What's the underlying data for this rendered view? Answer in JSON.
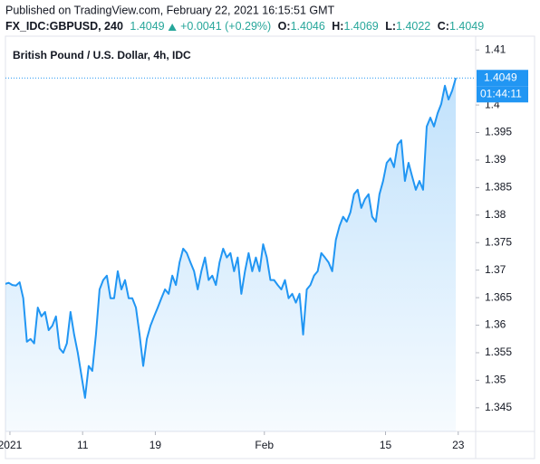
{
  "header": {
    "published": "Published on TradingView.com, February 22, 2021 16:15:51 GMT",
    "symbol": "FX_IDC:GBPUSD, 240",
    "price": "1.4049",
    "change": "+0.0041 (+0.29%)",
    "open_label": "O:",
    "open": "1.4046",
    "high_label": "H:",
    "high": "1.4069",
    "low_label": "L:",
    "low": "1.4022",
    "close_label": "C:",
    "close": "1.4049"
  },
  "chart_data": {
    "type": "area",
    "title": "British Pound / U.S. Dollar, 4h, IDC",
    "color": "#2196f3",
    "x": [
      -0.4,
      -0.1,
      0.2,
      0.5,
      0.8,
      1.1,
      1.4,
      1.7,
      2.0,
      2.3,
      2.6,
      2.9,
      3.2,
      3.5,
      3.8,
      4.1,
      4.4,
      4.7,
      5.0,
      5.3,
      5.6,
      5.9,
      6.2,
      6.5,
      6.8,
      7.1,
      7.4,
      7.7,
      8.0,
      8.3,
      8.6,
      8.9,
      9.2,
      9.5,
      9.8,
      10.1,
      10.4,
      10.7,
      11.0,
      11.3,
      11.6,
      11.9,
      12.2,
      12.5,
      12.8,
      13.1,
      13.4,
      13.7,
      14.0,
      14.3,
      14.6,
      14.9,
      15.2,
      15.5,
      15.8,
      16.1,
      16.4,
      16.7,
      17.0,
      17.3,
      17.6,
      17.9,
      18.2,
      18.5,
      18.8,
      19.1,
      19.4,
      19.7,
      20.0,
      20.3,
      20.6,
      20.9,
      21.2,
      21.5,
      21.8,
      22.1,
      22.4,
      22.7,
      23.0,
      23.3,
      23.6,
      23.9,
      24.2,
      24.5,
      24.8,
      25.1,
      25.4,
      25.7,
      26.0,
      26.3,
      26.6,
      26.9,
      27.2,
      27.5,
      27.8,
      28.1,
      28.4,
      28.7,
      29.0,
      29.3,
      29.6,
      29.9,
      30.2,
      30.5,
      30.8,
      31.1,
      31.4,
      31.7,
      32.0,
      32.3,
      32.6,
      32.9,
      33.2,
      33.5,
      33.8,
      34.1,
      34.4,
      34.7,
      35.0,
      35.3,
      35.6,
      35.9,
      36.2,
      36.5,
      36.8
    ],
    "values": [
      1.3675,
      1.3677,
      1.3673,
      1.3672,
      1.3678,
      1.3649,
      1.357,
      1.3575,
      1.3567,
      1.3632,
      1.3616,
      1.3624,
      1.3591,
      1.3599,
      1.3616,
      1.3558,
      1.355,
      1.3567,
      1.3624,
      1.3583,
      1.355,
      1.3509,
      1.3468,
      1.3526,
      1.3517,
      1.3583,
      1.3665,
      1.3682,
      1.369,
      1.3649,
      1.3649,
      1.3698,
      1.3665,
      1.3682,
      1.3649,
      1.3649,
      1.3632,
      1.3583,
      1.3526,
      1.3575,
      1.3599,
      1.3616,
      1.3632,
      1.3649,
      1.3665,
      1.3657,
      1.369,
      1.3673,
      1.3714,
      1.3739,
      1.3731,
      1.3714,
      1.3698,
      1.3665,
      1.3698,
      1.3723,
      1.3682,
      1.369,
      1.3673,
      1.3714,
      1.3739,
      1.3723,
      1.3731,
      1.3698,
      1.3723,
      1.3657,
      1.3698,
      1.3731,
      1.3698,
      1.3723,
      1.3698,
      1.3747,
      1.3723,
      1.3682,
      1.3682,
      1.3673,
      1.3665,
      1.3682,
      1.3649,
      1.3657,
      1.3641,
      1.3657,
      1.3583,
      1.3665,
      1.3673,
      1.369,
      1.3698,
      1.3731,
      1.3723,
      1.3714,
      1.3698,
      1.3755,
      1.378,
      1.3797,
      1.3788,
      1.3805,
      1.3838,
      1.3846,
      1.3813,
      1.3829,
      1.3838,
      1.3797,
      1.3788,
      1.3838,
      1.3862,
      1.3895,
      1.3903,
      1.3887,
      1.3928,
      1.3936,
      1.3862,
      1.3895,
      1.387,
      1.3846,
      1.3862,
      1.3846,
      1.3961,
      1.3977,
      1.3961,
      1.3985,
      1.4002,
      1.4035,
      1.401,
      1.4026,
      1.4049
    ],
    "xlim": [
      -0.37,
      38.44
    ],
    "xticks": [
      {
        "value": 0,
        "label": "2021"
      },
      {
        "value": 6,
        "label": "11"
      },
      {
        "value": 12,
        "label": "19"
      },
      {
        "value": 21,
        "label": "Feb"
      },
      {
        "value": 31,
        "label": "15"
      },
      {
        "value": 37,
        "label": "23"
      }
    ],
    "ylim": [
      1.3407,
      1.4125
    ],
    "yticks": [
      1.345,
      1.35,
      1.355,
      1.36,
      1.365,
      1.37,
      1.375,
      1.38,
      1.385,
      1.39,
      1.395,
      1.4,
      1.41
    ],
    "last_price": 1.4049,
    "countdown": "01:44:11",
    "grid": false
  }
}
